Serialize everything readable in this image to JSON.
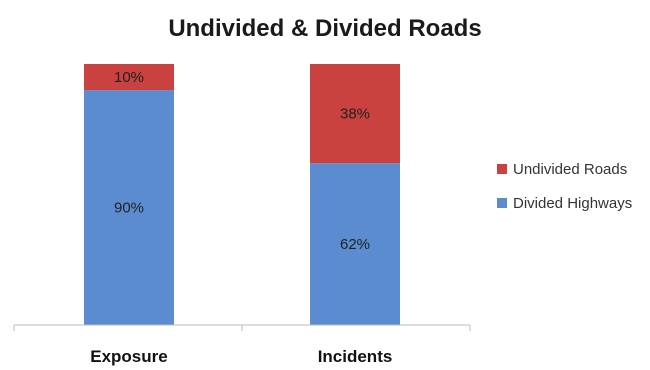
{
  "chart_data": {
    "type": "bar",
    "stacked": true,
    "percent_stacked": true,
    "title": "Undivided & Divided Roads",
    "xlabel": "",
    "ylabel": "",
    "ylim": [
      0,
      100
    ],
    "grid": false,
    "legend_position": "right",
    "categories": [
      "Exposure",
      "Incidents"
    ],
    "series": [
      {
        "name": "Divided Highways",
        "color": "#5B8CCF",
        "values": [
          90,
          62
        ],
        "labels": [
          "90%",
          "62%"
        ]
      },
      {
        "name": "Undivided Roads",
        "color": "#C9423F",
        "values": [
          10,
          38
        ],
        "labels": [
          "10%",
          "38%"
        ]
      }
    ],
    "legend": [
      "Undivided Roads",
      "Divided Highways"
    ]
  }
}
